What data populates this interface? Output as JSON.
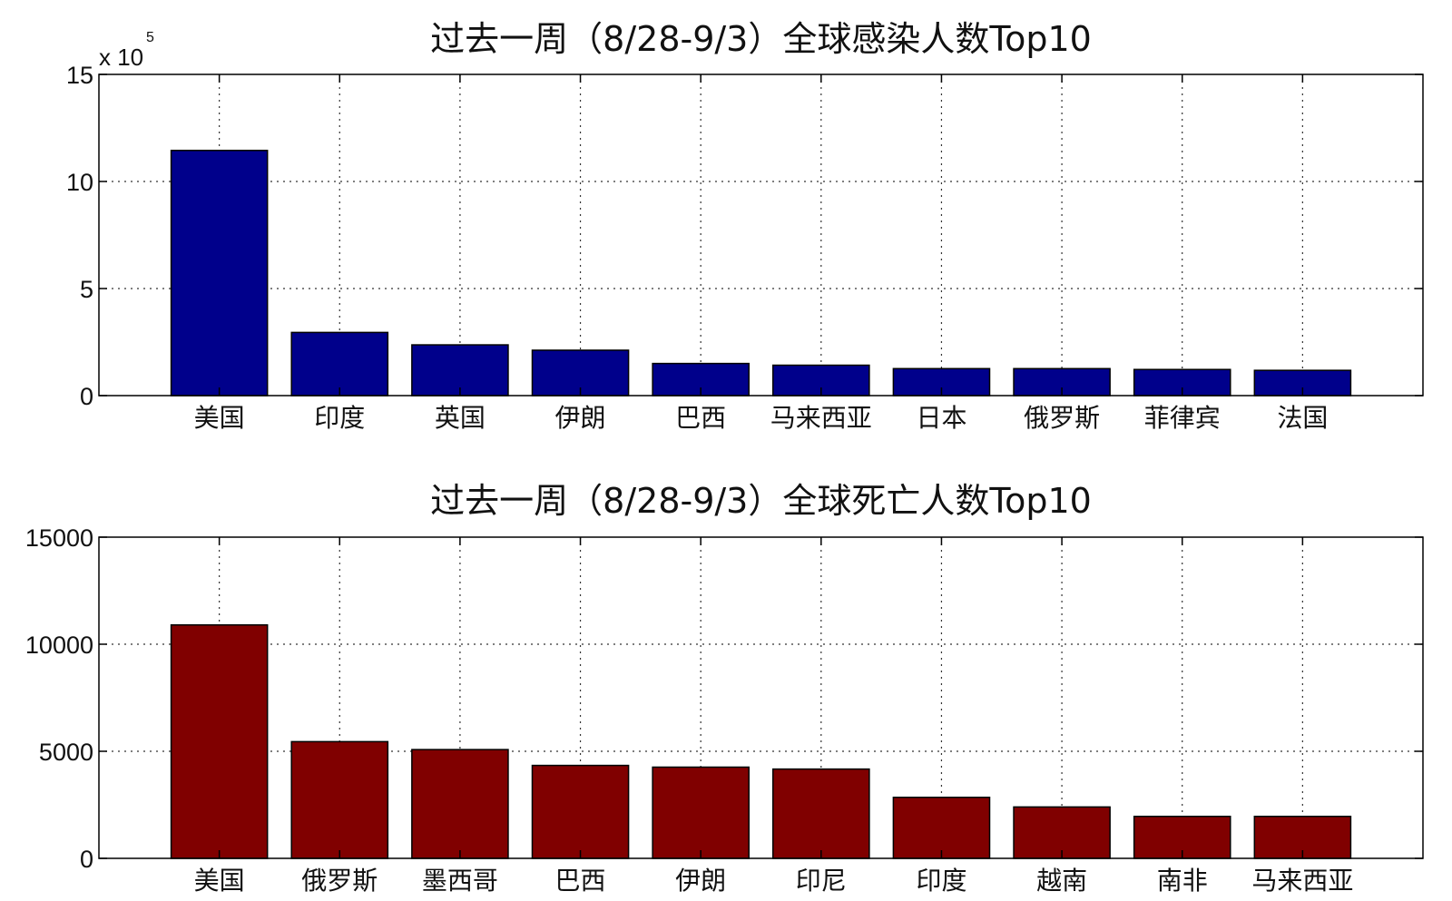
{
  "chart_data": [
    {
      "type": "bar",
      "title": "过去一周（8/28-9/3）全球感染人数Top10",
      "categories": [
        "美国",
        "印度",
        "英国",
        "伊朗",
        "巴西",
        "马来西亚",
        "日本",
        "俄罗斯",
        "菲律宾",
        "法国"
      ],
      "values": [
        1145000,
        295000,
        237000,
        212000,
        150000,
        142000,
        126000,
        126000,
        122000,
        118000
      ],
      "ylim": [
        0,
        1500000
      ],
      "yticks": [
        0,
        500000,
        1000000,
        1500000
      ],
      "ytick_labels": [
        "0",
        "5",
        "10",
        "15"
      ],
      "exponent_label": {
        "base": "x 10",
        "power": "5"
      },
      "xlabel": "",
      "ylabel": "",
      "grid": true,
      "bar_color": "#00008b"
    },
    {
      "type": "bar",
      "title": "过去一周（8/28-9/3）全球死亡人数Top10",
      "categories": [
        "美国",
        "俄罗斯",
        "墨西哥",
        "巴西",
        "伊朗",
        "印尼",
        "印度",
        "越南",
        "南非",
        "马来西亚"
      ],
      "values": [
        10900,
        5450,
        5080,
        4340,
        4260,
        4170,
        2850,
        2400,
        1960,
        1960
      ],
      "ylim": [
        0,
        15000
      ],
      "yticks": [
        0,
        5000,
        10000,
        15000
      ],
      "ytick_labels": [
        "0",
        "5000",
        "10000",
        "15000"
      ],
      "xlabel": "",
      "ylabel": "",
      "grid": true,
      "bar_color": "#800000"
    }
  ]
}
